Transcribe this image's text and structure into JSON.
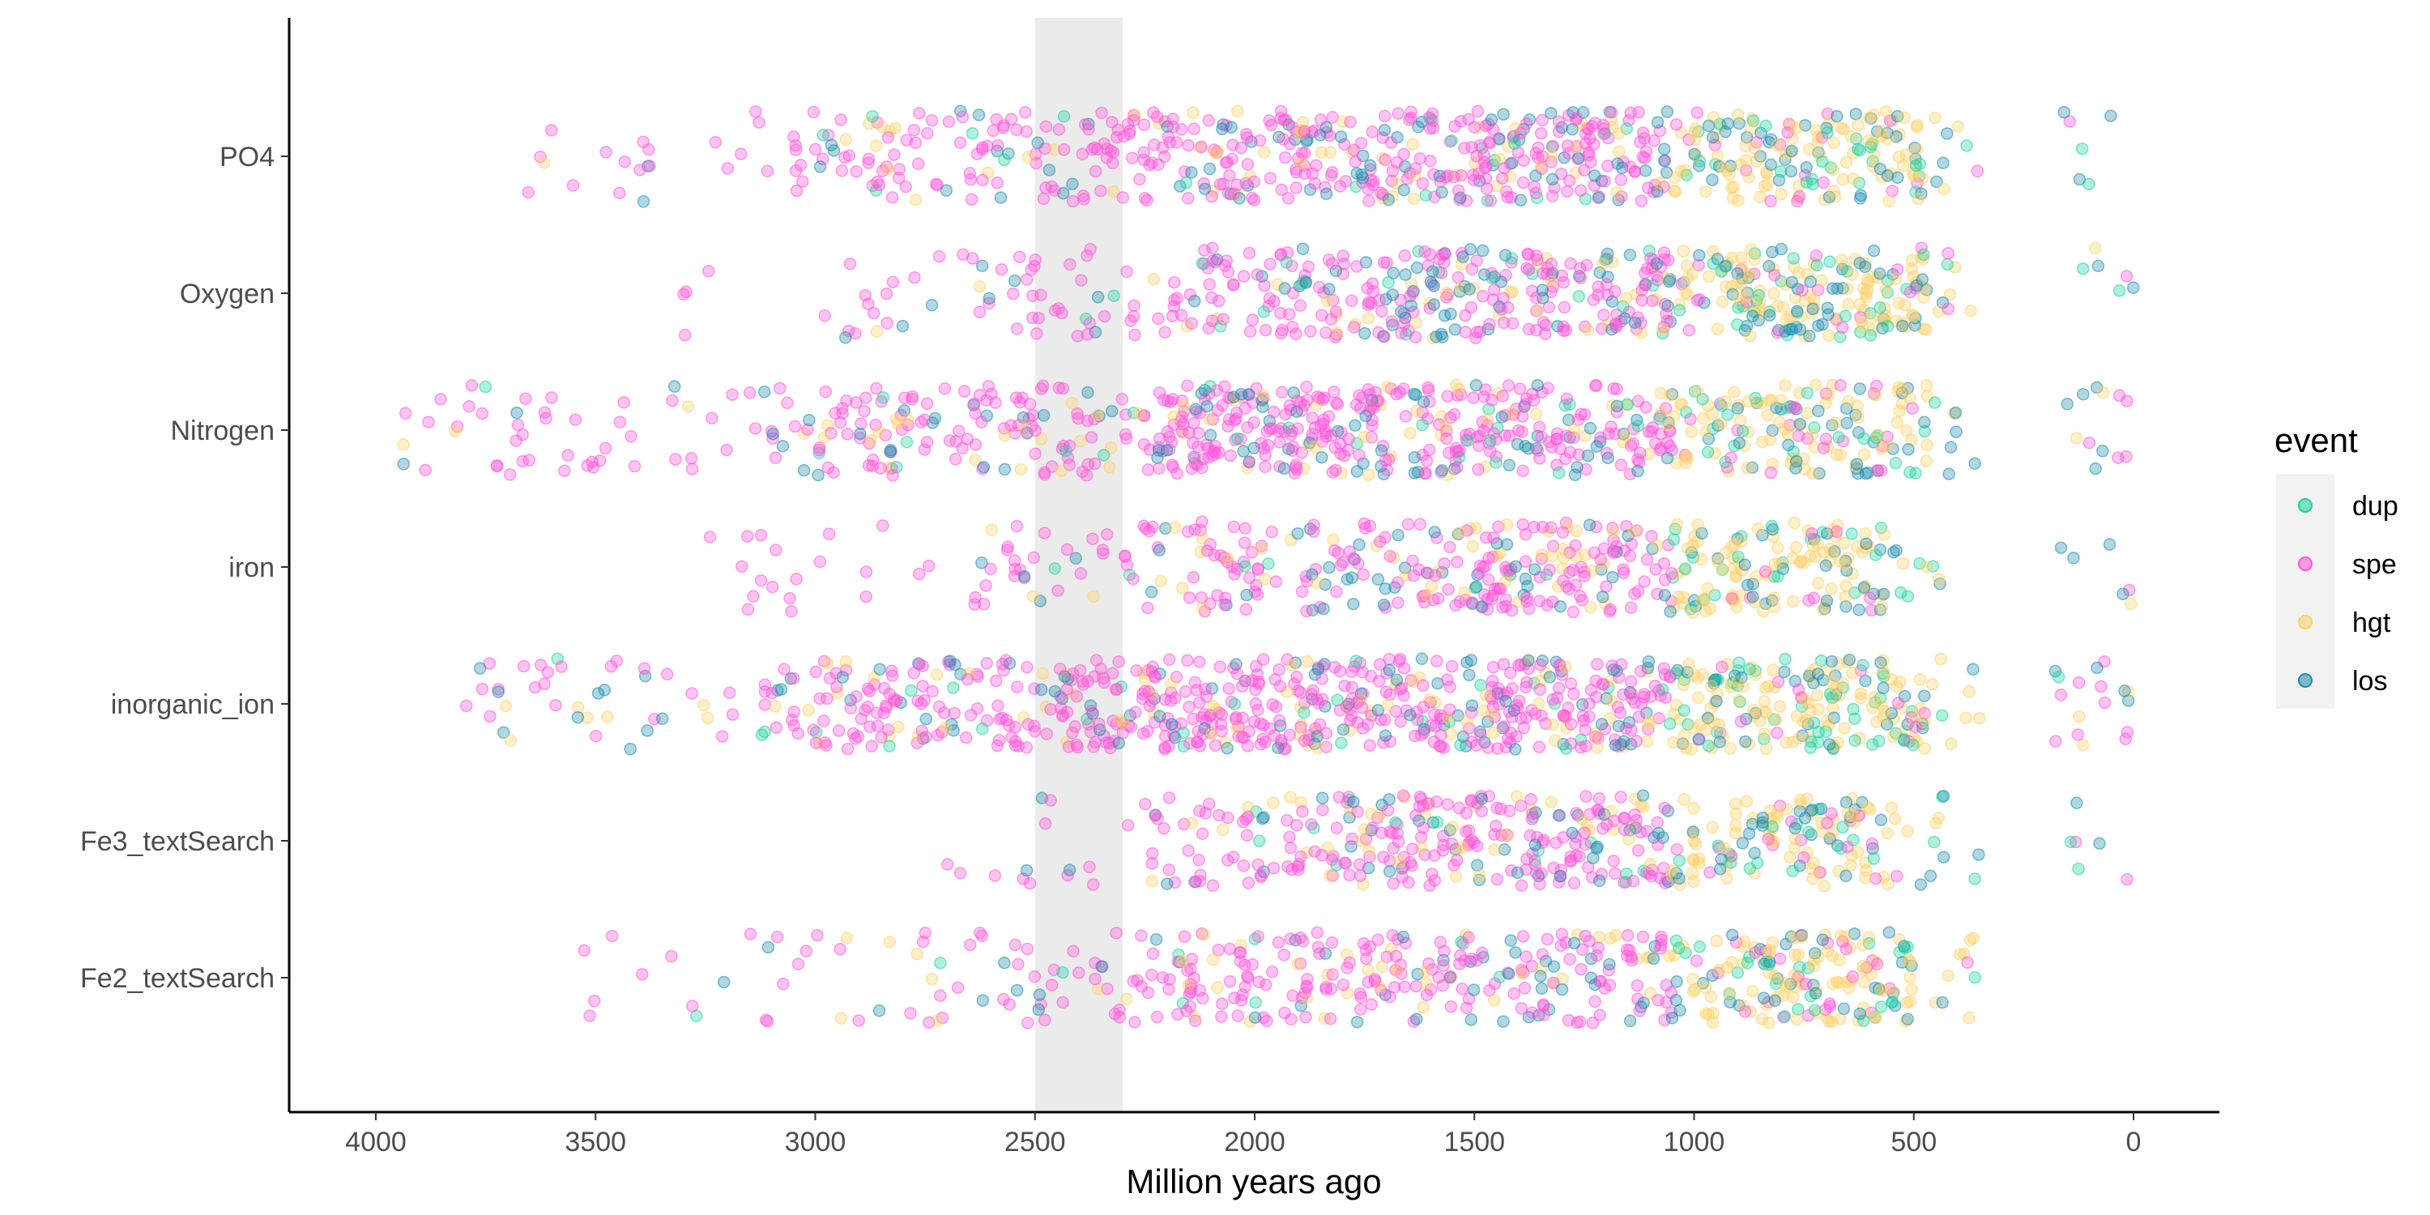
{
  "chart_data": {
    "type": "scatter",
    "title": "",
    "xlabel": "Million years ago",
    "ylabel": "",
    "xlim": [
      4200,
      -200
    ],
    "x_reversed": true,
    "x_ticks": [
      4000,
      3500,
      3000,
      2500,
      2000,
      1500,
      1000,
      500,
      0
    ],
    "categories": [
      "PO4",
      "Oxygen",
      "Nitrogen",
      "iron",
      "inorganic_ion",
      "Fe3_textSearch",
      "Fe2_textSearch"
    ],
    "shaded_band": [
      2500,
      2300
    ],
    "grid": false,
    "point_alpha": 0.35,
    "legend": {
      "title": "event",
      "placement": "right",
      "entries": [
        {
          "name": "dup",
          "color": "#1fd3a0"
        },
        {
          "name": "spe",
          "color": "#ff55d8"
        },
        {
          "name": "hgt",
          "color": "#ffd066"
        },
        {
          "name": "los",
          "color": "#1d8cad"
        }
      ]
    },
    "series": [
      {
        "category": "PO4",
        "ranges": [
          {
            "from": 3670,
            "to": 3050,
            "density": 1
          },
          {
            "from": 3050,
            "to": 2350,
            "density": 5
          },
          {
            "from": 2350,
            "to": 1900,
            "density": 8
          },
          {
            "from": 1900,
            "to": 1000,
            "density": 10
          },
          {
            "from": 1000,
            "to": 480,
            "density": 10
          },
          {
            "from": 480,
            "to": 350,
            "density": 2
          },
          {
            "from": 180,
            "to": 0,
            "density": 1
          }
        ]
      },
      {
        "category": "Oxygen",
        "ranges": [
          {
            "from": 3300,
            "to": 2650,
            "density": 1
          },
          {
            "from": 2650,
            "to": 2200,
            "density": 3
          },
          {
            "from": 2200,
            "to": 1900,
            "density": 6
          },
          {
            "from": 1900,
            "to": 470,
            "density": 10
          },
          {
            "from": 470,
            "to": 350,
            "density": 2
          },
          {
            "from": 180,
            "to": 0,
            "density": 1
          }
        ]
      },
      {
        "category": "Nitrogen",
        "ranges": [
          {
            "from": 3950,
            "to": 3000,
            "density": 2
          },
          {
            "from": 3000,
            "to": 2200,
            "density": 6
          },
          {
            "from": 2200,
            "to": 470,
            "density": 10
          },
          {
            "from": 470,
            "to": 350,
            "density": 2
          },
          {
            "from": 180,
            "to": 0,
            "density": 2
          }
        ]
      },
      {
        "category": "iron",
        "ranges": [
          {
            "from": 3250,
            "to": 2650,
            "density": 1
          },
          {
            "from": 2650,
            "to": 2150,
            "density": 3
          },
          {
            "from": 2150,
            "to": 1650,
            "density": 6
          },
          {
            "from": 1650,
            "to": 520,
            "density": 9
          },
          {
            "from": 520,
            "to": 430,
            "density": 2
          },
          {
            "from": 180,
            "to": 0,
            "density": 1
          }
        ]
      },
      {
        "category": "inorganic_ion",
        "ranges": [
          {
            "from": 3800,
            "to": 3100,
            "density": 2
          },
          {
            "from": 3100,
            "to": 2500,
            "density": 7
          },
          {
            "from": 2500,
            "to": 470,
            "density": 11
          },
          {
            "from": 470,
            "to": 350,
            "density": 2
          },
          {
            "from": 180,
            "to": 0,
            "density": 3
          }
        ]
      },
      {
        "category": "Fe3_textSearch",
        "ranges": [
          {
            "from": 2700,
            "to": 2250,
            "density": 1
          },
          {
            "from": 2250,
            "to": 1850,
            "density": 5
          },
          {
            "from": 1850,
            "to": 550,
            "density": 9
          },
          {
            "from": 550,
            "to": 350,
            "density": 2
          },
          {
            "from": 180,
            "to": 0,
            "density": 1
          }
        ]
      },
      {
        "category": "Fe2_textSearch",
        "ranges": [
          {
            "from": 3600,
            "to": 2750,
            "density": 1
          },
          {
            "from": 2750,
            "to": 2200,
            "density": 3
          },
          {
            "from": 2200,
            "to": 1050,
            "density": 7
          },
          {
            "from": 1050,
            "to": 500,
            "density": 10
          },
          {
            "from": 500,
            "to": 350,
            "density": 2
          }
        ]
      }
    ],
    "event_mix_by_age": [
      {
        "from": 4200,
        "to": 1900,
        "weights": {
          "dup": 0.04,
          "spe": 0.74,
          "hgt": 0.1,
          "los": 0.12
        }
      },
      {
        "from": 1900,
        "to": 1050,
        "weights": {
          "dup": 0.04,
          "spe": 0.62,
          "hgt": 0.14,
          "los": 0.2
        }
      },
      {
        "from": 1050,
        "to": 350,
        "weights": {
          "dup": 0.16,
          "spe": 0.1,
          "hgt": 0.52,
          "los": 0.22
        }
      },
      {
        "from": 350,
        "to": -200,
        "weights": {
          "dup": 0.15,
          "spe": 0.45,
          "hgt": 0.1,
          "los": 0.3
        }
      }
    ]
  }
}
